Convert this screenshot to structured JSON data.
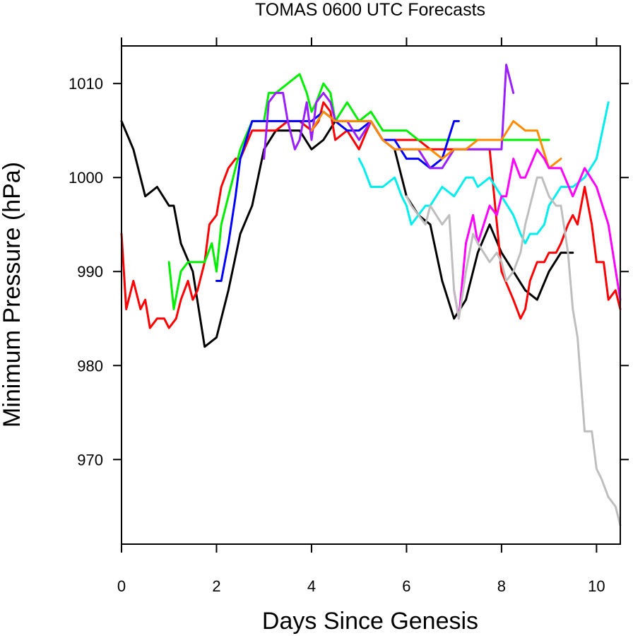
{
  "chart_data": {
    "type": "line",
    "title": "TOMAS 0600 UTC Forecasts",
    "xlabel": "Days Since Genesis",
    "ylabel": "Minimum Pressure (hPa)",
    "xlim": [
      0,
      10.5
    ],
    "ylim": [
      961,
      1014
    ],
    "x_ticks": [
      0,
      2,
      4,
      6,
      8,
      10
    ],
    "y_ticks": [
      970,
      980,
      990,
      1000,
      1010
    ],
    "grid": false,
    "legend": "none",
    "series": [
      {
        "color": "#000000",
        "x": [
          0,
          0.25,
          0.5,
          0.75,
          1,
          1.1,
          1.25,
          1.5,
          1.75,
          2,
          2.25,
          2.5,
          2.75,
          3,
          3.25,
          3.5,
          3.75,
          4,
          4.25,
          4.5,
          4.75,
          5,
          5.25,
          5.5,
          5.75,
          6,
          6.25,
          6.5,
          6.75,
          7,
          7.25,
          7.5,
          7.75,
          8,
          8.25,
          8.5,
          8.75,
          9,
          9.25,
          9.5
        ],
        "y": [
          1006,
          1003,
          998,
          999,
          997,
          997,
          993,
          990,
          982,
          983,
          988,
          994,
          997,
          1003,
          1005,
          1005,
          1005,
          1003,
          1004,
          1006,
          1006,
          1006,
          1006,
          1004,
          1003,
          998,
          996,
          995,
          989,
          985,
          987,
          992,
          995,
          992,
          990,
          988,
          987,
          990,
          992,
          992
        ]
      },
      {
        "color": "#ff0000",
        "x": [
          0,
          0.1,
          0.25,
          0.4,
          0.5,
          0.6,
          0.75,
          0.9,
          1,
          1.15,
          1.25,
          1.4,
          1.5,
          1.6,
          1.75,
          1.85,
          2,
          2.1,
          2.25,
          2.4,
          2.5,
          2.75,
          3,
          3.25,
          3.5,
          3.75,
          4,
          4.15,
          4.25,
          4.4,
          4.5,
          4.75,
          5,
          5.25,
          5.5,
          5.75,
          6,
          6.25,
          6.5,
          6.75,
          7,
          7.25,
          7.5,
          7.75,
          8,
          8.25,
          8.4,
          8.5,
          8.6,
          8.75,
          8.9,
          9,
          9.15,
          9.25,
          9.4,
          9.5,
          9.6,
          9.75,
          9.9,
          10,
          10.15,
          10.25,
          10.4,
          10.5
        ],
        "y": [
          994,
          986,
          989,
          986,
          987,
          984,
          985,
          985,
          984,
          985,
          987,
          989,
          987,
          988,
          991,
          995,
          996,
          999,
          1001,
          1002,
          1002,
          1005,
          1005,
          1005,
          1006,
          1006,
          1005,
          1006,
          1008,
          1007,
          1004,
          1005,
          1003,
          1006,
          1004,
          1004,
          1004,
          1004,
          1003,
          1003,
          1003,
          1003,
          1003,
          1003,
          990,
          987,
          985,
          986,
          989,
          991,
          991,
          992,
          992,
          993,
          995,
          996,
          995,
          999,
          995,
          991,
          991,
          987,
          988,
          986
        ]
      },
      {
        "color": "#00ee00",
        "x": [
          1,
          1.1,
          1.25,
          1.4,
          1.5,
          1.75,
          1.9,
          2,
          2.1,
          2.25,
          2.5,
          2.75,
          3,
          3.1,
          3.25,
          3.5,
          3.75,
          3.9,
          4,
          4.1,
          4.25,
          4.4,
          4.5,
          4.75,
          5,
          5.25,
          5.5,
          5.75,
          6,
          6.25,
          6.5,
          6.75,
          7,
          7.25,
          7.5,
          7.75,
          8,
          8.25,
          8.5,
          8.75,
          9
        ],
        "y": [
          991,
          986,
          990,
          991,
          991,
          991,
          993,
          990,
          995,
          998,
          1003,
          1006,
          1006,
          1009,
          1009,
          1010,
          1011,
          1009,
          1007,
          1008,
          1010,
          1009,
          1006,
          1008,
          1006,
          1007,
          1005,
          1005,
          1005,
          1004,
          1004,
          1004,
          1004,
          1004,
          1004,
          1004,
          1004,
          1004,
          1004,
          1004,
          1004
        ]
      },
      {
        "color": "#0000ff",
        "x": [
          2,
          2.1,
          2.25,
          2.4,
          2.5,
          2.75,
          3,
          3.25,
          3.5,
          3.75,
          4,
          4.25,
          4.5,
          4.75,
          5,
          5.25,
          5.5,
          5.75,
          6,
          6.25,
          6.5,
          6.75,
          7,
          7.1
        ],
        "y": [
          989,
          989,
          993,
          998,
          1002,
          1006,
          1006,
          1006,
          1006,
          1006,
          1006,
          1007,
          1006,
          1005,
          1005,
          1006,
          1004,
          1004,
          1002,
          1002,
          1001,
          1002,
          1006,
          1006
        ]
      },
      {
        "color": "#9a1fff",
        "x": [
          3,
          3.1,
          3.25,
          3.4,
          3.5,
          3.65,
          3.75,
          3.9,
          4,
          4.1,
          4.25,
          4.4,
          4.5,
          4.75,
          5,
          5.25,
          5.5,
          5.75,
          6,
          6.25,
          6.5,
          6.75,
          7,
          7.25,
          7.5,
          7.75,
          8,
          8.1,
          8.25
        ],
        "y": [
          1002,
          1008,
          1009,
          1009,
          1006,
          1003,
          1004,
          1008,
          1004,
          1008,
          1009,
          1008,
          1006,
          1006,
          1004,
          1006,
          1004,
          1003,
          1003,
          1003,
          1001,
          1001,
          1003,
          1003,
          1003,
          1003,
          1003,
          1012,
          1009
        ]
      },
      {
        "color": "#ff8c00",
        "x": [
          4,
          4.25,
          4.5,
          4.75,
          5,
          5.25,
          5.5,
          5.75,
          6,
          6.25,
          6.5,
          6.75,
          7,
          7.25,
          7.5,
          7.75,
          8,
          8.25,
          8.5,
          8.75,
          9,
          9.25
        ],
        "y": [
          1005,
          1007,
          1006,
          1006,
          1006,
          1006,
          1004,
          1003,
          1003,
          1003,
          1003,
          1002,
          1003,
          1003,
          1004,
          1004,
          1004,
          1006,
          1005,
          1005,
          1001,
          1002
        ]
      },
      {
        "color": "#00eeee",
        "x": [
          5,
          5.1,
          5.25,
          5.4,
          5.5,
          5.75,
          5.9,
          6,
          6.1,
          6.25,
          6.4,
          6.5,
          6.75,
          7,
          7.25,
          7.4,
          7.5,
          7.75,
          8,
          8.25,
          8.4,
          8.5,
          8.6,
          8.75,
          8.9,
          9,
          9.25,
          9.5,
          9.75,
          10,
          10.25
        ],
        "y": [
          1002,
          1001,
          999,
          999,
          999,
          1000,
          998,
          997,
          995,
          996,
          997,
          997,
          999,
          998,
          1000,
          1000,
          999,
          1000,
          998,
          996,
          994,
          993,
          994,
          994,
          995,
          997,
          999,
          999,
          1000,
          1002,
          1008
        ]
      },
      {
        "color": "#ff00ff",
        "x": [
          7,
          7.1,
          7.25,
          7.4,
          7.5,
          7.75,
          7.9,
          8,
          8.1,
          8.25,
          8.4,
          8.5,
          8.75,
          8.9,
          9,
          9.25,
          9.5,
          9.75,
          10,
          10.25,
          10.5
        ],
        "y": [
          988,
          985,
          993,
          996,
          993,
          997,
          996,
          998,
          998,
          1002,
          1000,
          1000,
          1003,
          1002,
          1001,
          1001,
          998,
          1001,
          999,
          995,
          987
        ]
      },
      {
        "color": "#bebebe",
        "x": [
          6,
          6.1,
          6.25,
          6.4,
          6.5,
          6.75,
          6.9,
          7,
          7.1,
          7.25,
          7.4,
          7.5,
          7.75,
          7.9,
          8,
          8.1,
          8.25,
          8.4,
          8.5,
          8.75,
          8.85,
          9,
          9.15,
          9.25,
          9.4,
          9.5,
          9.6,
          9.75,
          9.9,
          10,
          10.1,
          10.25,
          10.4,
          10.5
        ],
        "y": [
          998,
          997,
          996,
          995,
          997,
          995,
          996,
          988,
          985,
          990,
          994,
          993,
          991,
          992,
          991,
          989,
          990,
          992,
          995,
          1000,
          1000,
          998,
          997,
          997,
          992,
          986,
          983,
          973,
          973,
          969,
          968,
          966,
          965,
          963
        ]
      }
    ]
  }
}
